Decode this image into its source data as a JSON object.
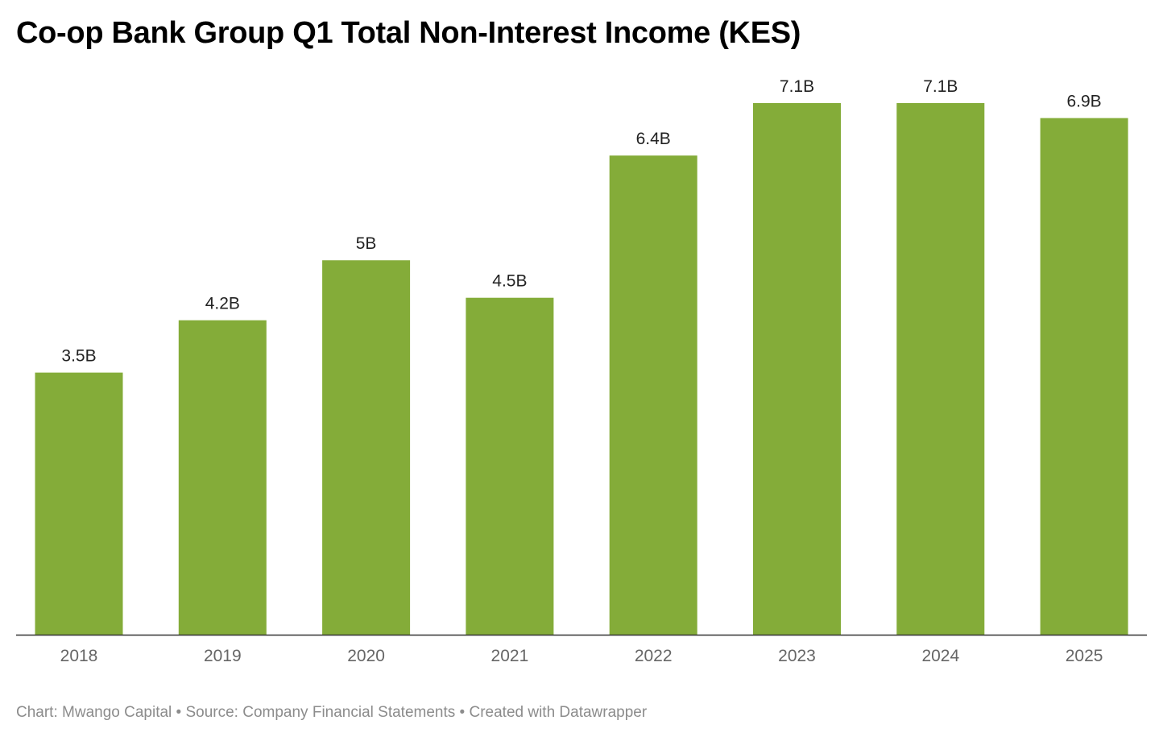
{
  "header": {
    "title": "Co-op Bank Group Q1 Total Non-Interest Income (KES)"
  },
  "footer": {
    "credit": "Chart: Mwango Capital",
    "separator_1": "•",
    "source": "Source: Company Financial Statements",
    "separator_2": "•",
    "tool": "Created with Datawrapper"
  },
  "chart_data": {
    "type": "bar",
    "title": "Co-op Bank Group Q1 Total Non-Interest Income (KES)",
    "categories": [
      "2018",
      "2019",
      "2020",
      "2021",
      "2022",
      "2023",
      "2024",
      "2025"
    ],
    "values": [
      3.5,
      4.2,
      5.0,
      4.5,
      6.4,
      7.1,
      7.1,
      6.9
    ],
    "data_labels": [
      "3.5B",
      "4.2B",
      "5B",
      "4.5B",
      "6.4B",
      "7.1B",
      "7.1B",
      "6.9B"
    ],
    "unit": "B",
    "xlabel": "",
    "ylabel": "",
    "ylim": [
      0,
      7.1
    ],
    "grid": false,
    "legend": "none",
    "colors": {
      "bar": "#84ac39",
      "baseline": "#333333"
    }
  }
}
